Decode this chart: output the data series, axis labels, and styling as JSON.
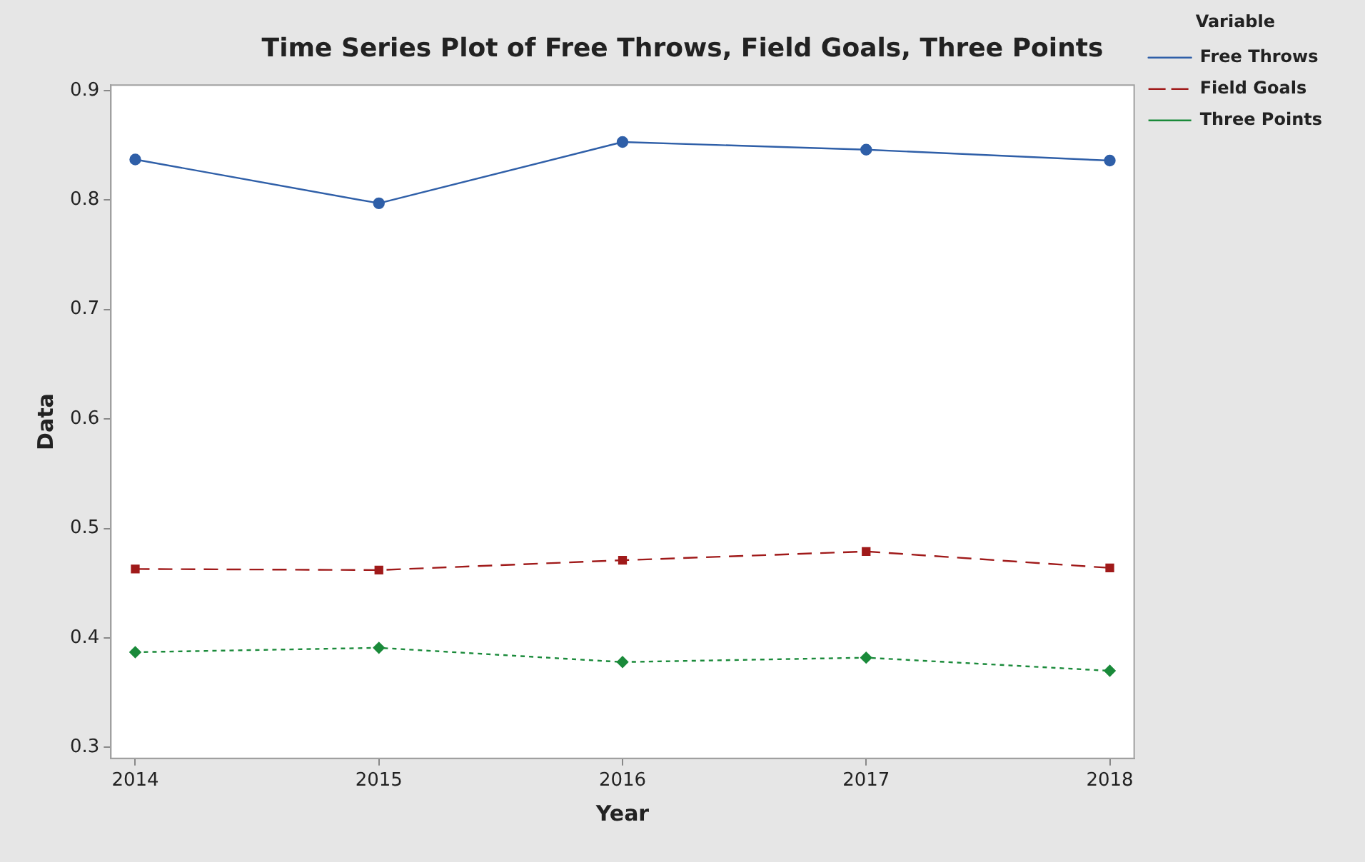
{
  "chart_data": {
    "type": "line",
    "title": "Time Series Plot of Free Throws, Field Goals, Three Points",
    "xlabel": "Year",
    "ylabel": "Data",
    "legend_title": "Variable",
    "x": [
      2014,
      2015,
      2016,
      2017,
      2018
    ],
    "xlim": [
      2013.9,
      2018.1
    ],
    "xticks": [
      2014,
      2015,
      2016,
      2017,
      2018
    ],
    "ylim": [
      0.29,
      0.905
    ],
    "yticks": [
      0.3,
      0.4,
      0.5,
      0.6,
      0.7,
      0.8,
      0.9
    ],
    "legend": "top right",
    "grid": false,
    "series": [
      {
        "name": "Free Throws",
        "color": "#2f5fa8",
        "marker": "circle",
        "line_style": "solid",
        "values": [
          0.837,
          0.797,
          0.853,
          0.846,
          0.836
        ]
      },
      {
        "name": "Field Goals",
        "color": "#a01a1a",
        "marker": "square",
        "line_style": "dashed",
        "values": [
          0.463,
          0.462,
          0.471,
          0.479,
          0.464
        ]
      },
      {
        "name": "Three Points",
        "color": "#1a8a3a",
        "marker": "diamond",
        "line_style": "dotted",
        "values": [
          0.387,
          0.391,
          0.378,
          0.382,
          0.37
        ]
      }
    ]
  }
}
